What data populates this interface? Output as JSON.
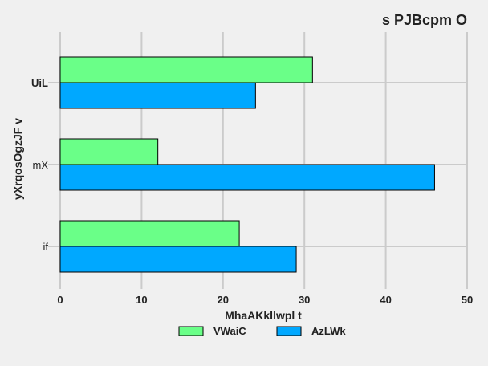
{
  "chart_data": {
    "type": "bar",
    "orientation": "horizontal",
    "title": "s PJBcpm O",
    "xlabel": "MhaAKkllwpl t",
    "ylabel": "yXrqosOgzJF v",
    "categories": [
      "UiL",
      "mX",
      "if"
    ],
    "series": [
      {
        "name": "VWaiC",
        "color": "#6aff88",
        "values": [
          31,
          12,
          22
        ]
      },
      {
        "name": "AzLWk",
        "color": "#00a8ff",
        "values": [
          24,
          46,
          29
        ]
      }
    ],
    "xlim": [
      0,
      50
    ],
    "xticks": [
      "0",
      "10",
      "20",
      "30",
      "40",
      "50"
    ],
    "grid": true,
    "legend_position": "bottom-center"
  }
}
